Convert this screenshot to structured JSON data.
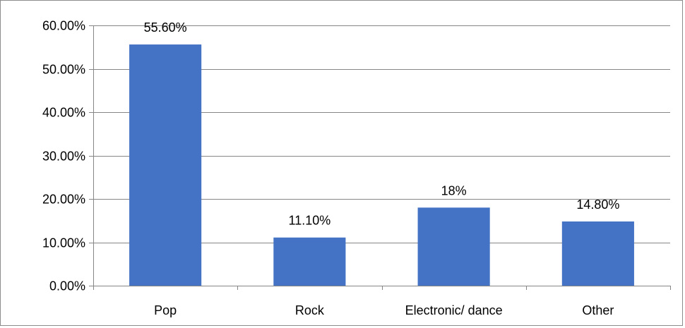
{
  "chart_data": {
    "type": "bar",
    "title": "",
    "xlabel": "",
    "ylabel": "",
    "categories": [
      "Pop",
      "Rock",
      "Electronic/ dance",
      "Other"
    ],
    "values": [
      55.6,
      11.1,
      18,
      14.8
    ],
    "data_labels": [
      "55.60%",
      "11.10%",
      "18%",
      "14.80%"
    ],
    "ylim": [
      0,
      60
    ],
    "yticks": [
      0,
      10,
      20,
      30,
      40,
      50,
      60
    ],
    "ytick_labels": [
      "0.00%",
      "10.00%",
      "20.00%",
      "30.00%",
      "40.00%",
      "50.00%",
      "60.00%"
    ],
    "grid": true,
    "legend": "none",
    "bar_color": "#4472C4",
    "grid_color": "#868686"
  }
}
